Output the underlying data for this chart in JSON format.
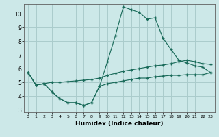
{
  "xlabel": "Humidex (Indice chaleur)",
  "background_color": "#cce8e8",
  "grid_color": "#aacccc",
  "line_color": "#1a6b5a",
  "x_hours": [
    0,
    1,
    2,
    3,
    4,
    5,
    6,
    7,
    8,
    9,
    10,
    11,
    12,
    13,
    14,
    15,
    16,
    17,
    18,
    19,
    20,
    21,
    22,
    23
  ],
  "line_top": [
    5.7,
    4.8,
    4.9,
    4.3,
    3.8,
    3.5,
    3.5,
    3.3,
    3.5,
    4.7,
    6.5,
    8.4,
    10.5,
    10.3,
    10.1,
    9.6,
    9.7,
    8.2,
    7.4,
    6.6,
    6.4,
    6.2,
    6.1,
    5.7
  ],
  "line_mid": [
    5.7,
    4.8,
    4.9,
    5.0,
    5.0,
    5.05,
    5.1,
    5.15,
    5.2,
    5.3,
    5.5,
    5.65,
    5.8,
    5.9,
    6.0,
    6.1,
    6.2,
    6.25,
    6.35,
    6.5,
    6.6,
    6.5,
    6.35,
    6.3
  ],
  "line_bot": [
    5.7,
    4.8,
    4.9,
    4.3,
    3.8,
    3.5,
    3.5,
    3.3,
    3.5,
    4.7,
    4.9,
    5.0,
    5.1,
    5.2,
    5.3,
    5.3,
    5.4,
    5.45,
    5.5,
    5.5,
    5.55,
    5.55,
    5.55,
    5.7
  ],
  "ylim_min": 2.8,
  "ylim_max": 10.7,
  "xlim_min": -0.5,
  "xlim_max": 23.5,
  "yticks": [
    3,
    4,
    5,
    6,
    7,
    8,
    9,
    10
  ],
  "xticks": [
    0,
    1,
    2,
    3,
    4,
    5,
    6,
    7,
    8,
    9,
    10,
    11,
    12,
    13,
    14,
    15,
    16,
    17,
    18,
    19,
    20,
    21,
    22,
    23
  ],
  "figw": 3.2,
  "figh": 2.0,
  "dpi": 100
}
